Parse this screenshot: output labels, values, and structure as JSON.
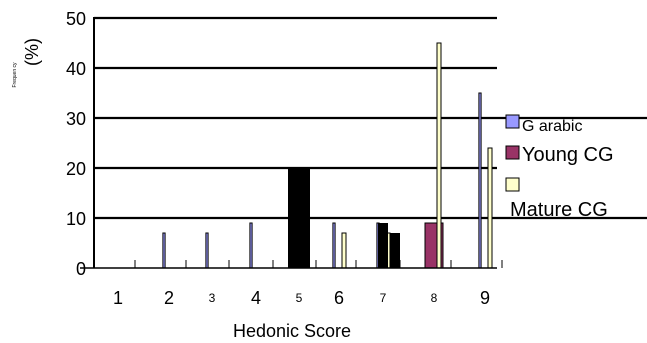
{
  "chart_data": {
    "type": "bar",
    "title": "",
    "xlabel": "Hedonic Score",
    "ylabel": "(%)",
    "ylabel_small": "Frequen cy",
    "categories": [
      "1",
      "2",
      "3",
      "4",
      "5",
      "6",
      "7",
      "8",
      "9"
    ],
    "ylim": [
      0,
      50
    ],
    "y_ticks": [
      "0",
      "10",
      "20",
      "30",
      "40",
      "50"
    ],
    "grid": true,
    "legend_position": "right",
    "series": [
      {
        "name": "G arabic",
        "color": "#9999FF",
        "values": [
          0,
          7,
          7,
          9,
          20,
          9,
          9,
          0,
          35
        ]
      },
      {
        "name": "Young CG",
        "color": "#993366",
        "values": [
          0,
          0,
          0,
          0,
          0,
          0,
          0,
          9,
          0
        ]
      },
      {
        "name": "Mature CG",
        "color": "#FFFFCC",
        "values": [
          0,
          0,
          0,
          0,
          0,
          7,
          7,
          45,
          24
        ]
      }
    ],
    "dark_bars": [
      {
        "category": "5",
        "value": 20
      },
      {
        "category": "7",
        "value": 9
      },
      {
        "category": "7",
        "value": 7
      }
    ],
    "bar_outline_color": "#000000"
  }
}
